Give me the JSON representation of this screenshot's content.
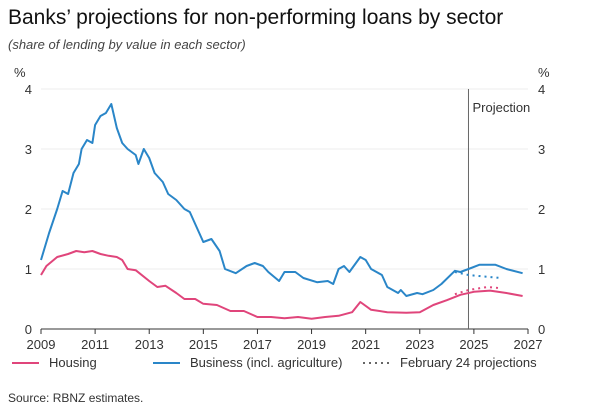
{
  "chart_data": {
    "type": "line",
    "title": "Banks’ projections for non-performing loans by sector",
    "subtitle": "(share of lending by value in each sector)",
    "ylabel_left": "%",
    "ylabel_right": "%",
    "xlim": [
      2009,
      2027
    ],
    "ylim": [
      0,
      4
    ],
    "xticks": [
      2009,
      2011,
      2013,
      2015,
      2017,
      2019,
      2021,
      2023,
      2025,
      2027
    ],
    "yticks": [
      0,
      1,
      2,
      3,
      4
    ],
    "projection_start": 2024.8,
    "projection_label": "Projection",
    "series": [
      {
        "name": "Housing",
        "color": "#e0457b",
        "style": "solid",
        "points": [
          [
            2009.0,
            0.9
          ],
          [
            2009.2,
            1.05
          ],
          [
            2009.6,
            1.2
          ],
          [
            2010.0,
            1.25
          ],
          [
            2010.3,
            1.3
          ],
          [
            2010.6,
            1.28
          ],
          [
            2010.9,
            1.3
          ],
          [
            2011.2,
            1.25
          ],
          [
            2011.5,
            1.22
          ],
          [
            2011.8,
            1.2
          ],
          [
            2012.0,
            1.15
          ],
          [
            2012.2,
            1.0
          ],
          [
            2012.5,
            0.98
          ],
          [
            2013.0,
            0.8
          ],
          [
            2013.3,
            0.7
          ],
          [
            2013.6,
            0.72
          ],
          [
            2014.0,
            0.6
          ],
          [
            2014.3,
            0.5
          ],
          [
            2014.7,
            0.5
          ],
          [
            2015.0,
            0.42
          ],
          [
            2015.5,
            0.4
          ],
          [
            2016.0,
            0.3
          ],
          [
            2016.5,
            0.3
          ],
          [
            2017.0,
            0.2
          ],
          [
            2017.5,
            0.2
          ],
          [
            2018.0,
            0.18
          ],
          [
            2018.5,
            0.2
          ],
          [
            2019.0,
            0.17
          ],
          [
            2019.5,
            0.2
          ],
          [
            2020.0,
            0.22
          ],
          [
            2020.5,
            0.28
          ],
          [
            2020.8,
            0.45
          ],
          [
            2021.2,
            0.32
          ],
          [
            2021.8,
            0.28
          ],
          [
            2022.5,
            0.27
          ],
          [
            2023.0,
            0.28
          ],
          [
            2023.5,
            0.4
          ],
          [
            2024.0,
            0.48
          ],
          [
            2024.5,
            0.57
          ],
          [
            2025.0,
            0.62
          ],
          [
            2025.6,
            0.64
          ],
          [
            2026.2,
            0.6
          ],
          [
            2026.8,
            0.55
          ]
        ]
      },
      {
        "name": "Business (incl. agriculture)",
        "color": "#2a86c8",
        "style": "solid",
        "points": [
          [
            2009.0,
            1.15
          ],
          [
            2009.3,
            1.6
          ],
          [
            2009.6,
            2.0
          ],
          [
            2009.8,
            2.3
          ],
          [
            2010.0,
            2.25
          ],
          [
            2010.2,
            2.6
          ],
          [
            2010.4,
            2.75
          ],
          [
            2010.5,
            3.0
          ],
          [
            2010.7,
            3.15
          ],
          [
            2010.9,
            3.1
          ],
          [
            2011.0,
            3.4
          ],
          [
            2011.2,
            3.55
          ],
          [
            2011.4,
            3.6
          ],
          [
            2011.6,
            3.75
          ],
          [
            2011.8,
            3.35
          ],
          [
            2012.0,
            3.1
          ],
          [
            2012.2,
            3.0
          ],
          [
            2012.5,
            2.9
          ],
          [
            2012.6,
            2.75
          ],
          [
            2012.8,
            3.0
          ],
          [
            2013.0,
            2.85
          ],
          [
            2013.2,
            2.6
          ],
          [
            2013.5,
            2.45
          ],
          [
            2013.7,
            2.25
          ],
          [
            2014.0,
            2.15
          ],
          [
            2014.3,
            2.0
          ],
          [
            2014.5,
            1.95
          ],
          [
            2014.8,
            1.65
          ],
          [
            2015.0,
            1.45
          ],
          [
            2015.3,
            1.5
          ],
          [
            2015.6,
            1.3
          ],
          [
            2015.8,
            1.0
          ],
          [
            2016.2,
            0.93
          ],
          [
            2016.6,
            1.05
          ],
          [
            2016.9,
            1.1
          ],
          [
            2017.2,
            1.05
          ],
          [
            2017.4,
            0.95
          ],
          [
            2017.8,
            0.8
          ],
          [
            2018.0,
            0.95
          ],
          [
            2018.4,
            0.95
          ],
          [
            2018.7,
            0.85
          ],
          [
            2019.2,
            0.78
          ],
          [
            2019.6,
            0.8
          ],
          [
            2019.8,
            0.75
          ],
          [
            2020.0,
            1.0
          ],
          [
            2020.2,
            1.05
          ],
          [
            2020.4,
            0.95
          ],
          [
            2020.8,
            1.2
          ],
          [
            2021.0,
            1.15
          ],
          [
            2021.2,
            1.0
          ],
          [
            2021.6,
            0.9
          ],
          [
            2021.8,
            0.7
          ],
          [
            2022.2,
            0.6
          ],
          [
            2022.3,
            0.65
          ],
          [
            2022.5,
            0.55
          ],
          [
            2022.9,
            0.6
          ],
          [
            2023.1,
            0.58
          ],
          [
            2023.5,
            0.65
          ],
          [
            2023.8,
            0.75
          ],
          [
            2024.3,
            0.97
          ],
          [
            2024.5,
            0.95
          ],
          [
            2024.8,
            1.0
          ],
          [
            2025.2,
            1.07
          ],
          [
            2025.8,
            1.07
          ],
          [
            2026.2,
            1.0
          ],
          [
            2026.8,
            0.93
          ]
        ]
      },
      {
        "name": "February 24 projections (business)",
        "color": "#2a86c8",
        "style": "dotted",
        "points": [
          [
            2024.3,
            0.95
          ],
          [
            2024.8,
            0.9
          ],
          [
            2025.5,
            0.87
          ],
          [
            2026.0,
            0.85
          ]
        ]
      },
      {
        "name": "February 24 projections (housing)",
        "color": "#e0457b",
        "style": "dotted",
        "points": [
          [
            2024.3,
            0.58
          ],
          [
            2024.8,
            0.65
          ],
          [
            2025.5,
            0.7
          ],
          [
            2026.0,
            0.68
          ]
        ]
      }
    ],
    "legend": [
      "Housing",
      "Business (incl. agriculture)",
      "February 24 projections"
    ],
    "legend_placement": "bottom",
    "source": "Source: RBNZ estimates."
  }
}
